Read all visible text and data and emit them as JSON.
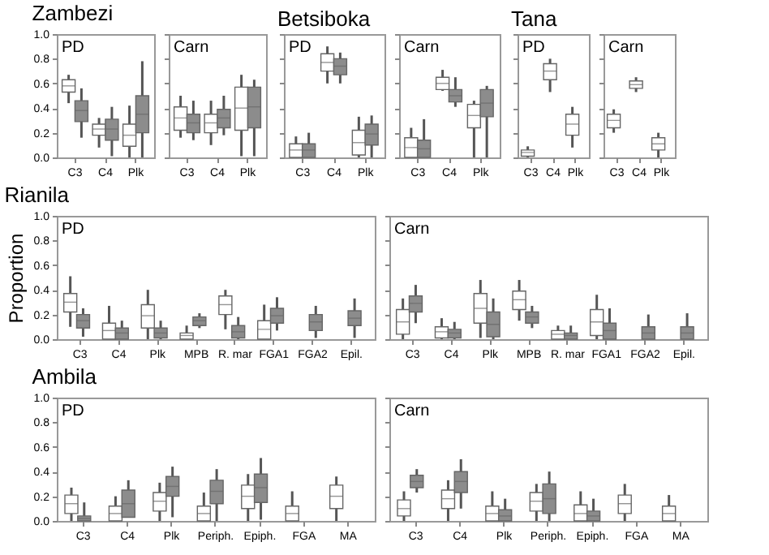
{
  "chart_data": [
    {
      "type": "box",
      "title": "Zambezi",
      "annotations": [
        "PD"
      ],
      "categories": [
        "C3",
        "C4",
        "Plk"
      ],
      "ylim": [
        0,
        1
      ],
      "yticks": [
        {
          "value": 0,
          "label": "0.0"
        },
        0.2,
        0.4,
        0.6,
        0.8,
        {
          "value": 1,
          "label": "1.0"
        }
      ],
      "grid": false,
      "series": [
        {
          "color": "#ffffff",
          "boxes": [
            {
              "low": 0.44,
              "q1": 0.53,
              "median": 0.58,
              "q3": 0.63,
              "high": 0.67
            },
            {
              "low": 0.08,
              "q1": 0.18,
              "median": 0.23,
              "q3": 0.27,
              "high": 0.32
            },
            {
              "low": 0,
              "q1": 0.09,
              "median": 0.18,
              "q3": 0.27,
              "high": 0.42
            }
          ]
        },
        {
          "color": "#8c8c8c",
          "boxes": [
            {
              "low": 0.16,
              "q1": 0.29,
              "median": 0.38,
              "q3": 0.46,
              "high": 0.56
            },
            {
              "low": 0.01,
              "q1": 0.14,
              "median": 0.23,
              "q3": 0.31,
              "high": 0.41
            },
            {
              "low": 0,
              "q1": 0.2,
              "median": 0.35,
              "q3": 0.5,
              "high": 0.78
            }
          ]
        }
      ]
    },
    {
      "type": "box",
      "annotations": [
        "Carn"
      ],
      "categories": [
        "C3",
        "C4",
        "Plk"
      ],
      "ylim": [
        0,
        1
      ],
      "yticks": [
        {
          "value": 0,
          "label": null
        },
        {
          "value": 0.2,
          "label": null
        },
        {
          "value": 0.4,
          "label": null
        },
        {
          "value": 0.6,
          "label": null
        },
        {
          "value": 0.8,
          "label": null
        },
        {
          "value": 1,
          "label": null
        }
      ],
      "tick_labels": "x",
      "grid": false,
      "series": [
        {
          "color": "#ffffff",
          "boxes": [
            {
              "low": 0.16,
              "q1": 0.22,
              "median": 0.32,
              "q3": 0.41,
              "high": 0.5
            },
            {
              "low": 0.1,
              "q1": 0.2,
              "median": 0.28,
              "q3": 0.35,
              "high": 0.46
            },
            {
              "low": 0.01,
              "q1": 0.22,
              "median": 0.4,
              "q3": 0.57,
              "high": 0.67
            }
          ]
        },
        {
          "color": "#8c8c8c",
          "boxes": [
            {
              "low": 0.14,
              "q1": 0.2,
              "median": 0.28,
              "q3": 0.35,
              "high": 0.46
            },
            {
              "low": 0.18,
              "q1": 0.24,
              "median": 0.32,
              "q3": 0.39,
              "high": 0.5
            },
            {
              "low": 0.01,
              "q1": 0.24,
              "median": 0.41,
              "q3": 0.57,
              "high": 0.63
            }
          ]
        }
      ]
    },
    {
      "type": "box",
      "title": "Betsiboka",
      "annotations": [
        "PD"
      ],
      "categories": [
        "C3",
        "C4",
        "Plk"
      ],
      "ylim": [
        0,
        1
      ],
      "yticks": [
        {
          "value": 0,
          "label": null
        },
        {
          "value": 0.2,
          "label": null
        },
        {
          "value": 0.4,
          "label": null
        },
        {
          "value": 0.6,
          "label": null
        },
        {
          "value": 0.8,
          "label": null
        },
        {
          "value": 1,
          "label": null
        }
      ],
      "tick_labels": "x",
      "grid": false,
      "series": [
        {
          "color": "#ffffff",
          "boxes": [
            {
              "low": 0,
              "q1": 0,
              "median": 0.06,
              "q3": 0.11,
              "high": 0.17
            },
            {
              "low": 0.6,
              "q1": 0.7,
              "median": 0.77,
              "q3": 0.84,
              "high": 0.9
            },
            {
              "low": 0,
              "q1": 0.02,
              "median": 0.12,
              "q3": 0.22,
              "high": 0.33
            }
          ]
        },
        {
          "color": "#8c8c8c",
          "boxes": [
            {
              "low": 0,
              "q1": 0,
              "median": 0.06,
              "q3": 0.11,
              "high": 0.2
            },
            {
              "low": 0.6,
              "q1": 0.67,
              "median": 0.74,
              "q3": 0.8,
              "high": 0.85
            },
            {
              "low": 0,
              "q1": 0.1,
              "median": 0.19,
              "q3": 0.27,
              "high": 0.34
            }
          ]
        }
      ]
    },
    {
      "type": "box",
      "annotations": [
        "Carn"
      ],
      "categories": [
        "C3",
        "C4",
        "Plk"
      ],
      "ylim": [
        0,
        1
      ],
      "yticks": [
        {
          "value": 0,
          "label": null
        },
        {
          "value": 0.2,
          "label": null
        },
        {
          "value": 0.4,
          "label": null
        },
        {
          "value": 0.6,
          "label": null
        },
        {
          "value": 0.8,
          "label": null
        },
        {
          "value": 1,
          "label": null
        }
      ],
      "tick_labels": "x",
      "grid": false,
      "series": [
        {
          "color": "#ffffff",
          "boxes": [
            {
              "low": 0,
              "q1": 0,
              "median": 0.08,
              "q3": 0.16,
              "high": 0.24
            },
            {
              "low": 0.54,
              "q1": 0.55,
              "median": 0.6,
              "q3": 0.65,
              "high": 0.71
            },
            {
              "low": 0,
              "q1": 0.24,
              "median": 0.34,
              "q3": 0.43,
              "high": 0.46
            }
          ]
        },
        {
          "color": "#8c8c8c",
          "boxes": [
            {
              "low": 0,
              "q1": 0,
              "median": 0.07,
              "q3": 0.14,
              "high": 0.31
            },
            {
              "low": 0.41,
              "q1": 0.45,
              "median": 0.5,
              "q3": 0.55,
              "high": 0.65
            },
            {
              "low": 0,
              "q1": 0.33,
              "median": 0.44,
              "q3": 0.55,
              "high": 0.58
            }
          ]
        }
      ]
    },
    {
      "type": "box",
      "title": "Tana",
      "annotations": [
        "PD"
      ],
      "categories": [
        "C3",
        "C4",
        "Plk"
      ],
      "ylim": [
        0,
        1
      ],
      "yticks": [
        {
          "value": 0,
          "label": null
        },
        {
          "value": 0.2,
          "label": null
        },
        {
          "value": 0.4,
          "label": null
        },
        {
          "value": 0.6,
          "label": null
        },
        {
          "value": 0.8,
          "label": null
        },
        {
          "value": 1,
          "label": null
        }
      ],
      "tick_labels": "x",
      "grid": false,
      "series": [
        {
          "color": "#ffffff",
          "boxes": [
            {
              "low": 0,
              "q1": 0.01,
              "median": 0.04,
              "q3": 0.06,
              "high": 0.09
            },
            {
              "low": 0.53,
              "q1": 0.63,
              "median": 0.7,
              "q3": 0.76,
              "high": 0.8
            },
            {
              "low": 0.08,
              "q1": 0.18,
              "median": 0.27,
              "q3": 0.35,
              "high": 0.41
            }
          ]
        }
      ]
    },
    {
      "type": "box",
      "annotations": [
        "Carn"
      ],
      "categories": [
        "C3",
        "C4",
        "Plk"
      ],
      "ylim": [
        0,
        1
      ],
      "yticks": [
        {
          "value": 0,
          "label": null
        },
        {
          "value": 0.2,
          "label": null
        },
        {
          "value": 0.4,
          "label": null
        },
        {
          "value": 0.6,
          "label": null
        },
        {
          "value": 0.8,
          "label": null
        },
        {
          "value": 1,
          "label": null
        }
      ],
      "tick_labels": "x",
      "grid": false,
      "series": [
        {
          "color": "#ffffff",
          "boxes": [
            {
              "low": 0.2,
              "q1": 0.24,
              "median": 0.3,
              "q3": 0.35,
              "high": 0.39
            },
            {
              "low": 0.53,
              "q1": 0.56,
              "median": 0.59,
              "q3": 0.62,
              "high": 0.65
            },
            {
              "low": 0,
              "q1": 0.06,
              "median": 0.11,
              "q3": 0.16,
              "high": 0.2
            }
          ]
        }
      ]
    },
    {
      "type": "box",
      "title": "Rianila",
      "ylabel": "Proportion",
      "annotations": [
        "PD"
      ],
      "categories": [
        "C3",
        "C4",
        "Plk",
        "MPB",
        "R. mar",
        "FGA1",
        "FGA2",
        "Epil."
      ],
      "ylim": [
        0,
        1
      ],
      "yticks": [
        {
          "value": 0,
          "label": "0.0"
        },
        0.2,
        0.4,
        0.6,
        0.8,
        {
          "value": 1,
          "label": "1.0"
        }
      ],
      "grid": false,
      "series": [
        {
          "color": "#ffffff",
          "boxes": [
            {
              "low": 0.1,
              "q1": 0.22,
              "median": 0.3,
              "q3": 0.37,
              "high": 0.51
            },
            {
              "low": 0,
              "q1": 0,
              "median": 0.07,
              "q3": 0.13,
              "high": 0.27
            },
            {
              "low": 0,
              "q1": 0.09,
              "median": 0.19,
              "q3": 0.28,
              "high": 0.4
            },
            {
              "low": 0,
              "q1": 0,
              "median": 0.03,
              "q3": 0.05,
              "high": 0.11
            },
            {
              "low": 0.08,
              "q1": 0.2,
              "median": 0.28,
              "q3": 0.35,
              "high": 0.4
            },
            {
              "low": 0,
              "q1": 0,
              "median": 0.08,
              "q3": 0.15,
              "high": 0.28
            },
            null,
            null
          ]
        },
        {
          "color": "#8c8c8c",
          "boxes": [
            {
              "low": 0.02,
              "q1": 0.09,
              "median": 0.15,
              "q3": 0.2,
              "high": 0.25
            },
            {
              "low": 0,
              "q1": 0,
              "median": 0.05,
              "q3": 0.09,
              "high": 0.15
            },
            {
              "low": 0,
              "q1": 0.01,
              "median": 0.05,
              "q3": 0.09,
              "high": 0.15
            },
            {
              "low": 0.09,
              "q1": 0.11,
              "median": 0.15,
              "q3": 0.18,
              "high": 0.21
            },
            {
              "low": 0,
              "q1": 0.01,
              "median": 0.06,
              "q3": 0.11,
              "high": 0.18
            },
            {
              "low": 0.07,
              "q1": 0.13,
              "median": 0.19,
              "q3": 0.25,
              "high": 0.34
            },
            {
              "low": 0.01,
              "q1": 0.07,
              "median": 0.14,
              "q3": 0.2,
              "high": 0.27
            },
            {
              "low": 0.01,
              "q1": 0.11,
              "median": 0.17,
              "q3": 0.23,
              "high": 0.33
            }
          ]
        }
      ]
    },
    {
      "type": "box",
      "annotations": [
        "Carn"
      ],
      "categories": [
        "C3",
        "C4",
        "Plk",
        "MPB",
        "R. mar",
        "FGA1",
        "FGA2",
        "Epil."
      ],
      "ylim": [
        0,
        1
      ],
      "yticks": [
        {
          "value": 0,
          "label": null
        },
        {
          "value": 0.2,
          "label": null
        },
        {
          "value": 0.4,
          "label": null
        },
        {
          "value": 0.6,
          "label": null
        },
        {
          "value": 0.8,
          "label": null
        },
        {
          "value": 1,
          "label": null
        }
      ],
      "tick_labels": "x",
      "grid": false,
      "series": [
        {
          "color": "#ffffff",
          "boxes": [
            {
              "low": 0,
              "q1": 0.04,
              "median": 0.14,
              "q3": 0.24,
              "high": 0.33
            },
            {
              "low": 0,
              "q1": 0.01,
              "median": 0.06,
              "q3": 0.1,
              "high": 0.17
            },
            {
              "low": 0.01,
              "q1": 0.13,
              "median": 0.25,
              "q3": 0.37,
              "high": 0.48
            },
            {
              "low": 0.15,
              "q1": 0.24,
              "median": 0.32,
              "q3": 0.39,
              "high": 0.48
            },
            {
              "low": 0,
              "q1": 0,
              "median": 0.04,
              "q3": 0.07,
              "high": 0.11
            },
            {
              "low": 0,
              "q1": 0.03,
              "median": 0.14,
              "q3": 0.24,
              "high": 0.36
            },
            null,
            null
          ]
        },
        {
          "color": "#8c8c8c",
          "boxes": [
            {
              "low": 0.13,
              "q1": 0.22,
              "median": 0.29,
              "q3": 0.35,
              "high": 0.44
            },
            {
              "low": 0,
              "q1": 0.01,
              "median": 0.05,
              "q3": 0.08,
              "high": 0.14
            },
            {
              "low": 0,
              "q1": 0.02,
              "median": 0.12,
              "q3": 0.22,
              "high": 0.33
            },
            {
              "low": 0.09,
              "q1": 0.13,
              "median": 0.18,
              "q3": 0.22,
              "high": 0.27
            },
            {
              "low": 0,
              "q1": 0,
              "median": 0.03,
              "q3": 0.05,
              "high": 0.11
            },
            {
              "low": 0,
              "q1": 0,
              "median": 0.07,
              "q3": 0.13,
              "high": 0.25
            },
            {
              "low": 0,
              "q1": 0,
              "median": 0.05,
              "q3": 0.1,
              "high": 0.2
            },
            {
              "low": 0,
              "q1": 0,
              "median": 0.05,
              "q3": 0.1,
              "high": 0.21
            }
          ]
        }
      ]
    },
    {
      "type": "box",
      "title": "Ambila",
      "annotations": [
        "PD"
      ],
      "categories": [
        "C3",
        "C4",
        "Plk",
        "Periph.",
        "Epiph.",
        "FGA",
        "MA"
      ],
      "ylim": [
        0,
        1
      ],
      "yticks": [
        {
          "value": 0,
          "label": "0.0"
        },
        0.2,
        0.4,
        0.6,
        0.8,
        {
          "value": 1,
          "label": "1.0"
        }
      ],
      "grid": false,
      "series": [
        {
          "color": "#ffffff",
          "boxes": [
            {
              "low": 0,
              "q1": 0.06,
              "median": 0.14,
              "q3": 0.21,
              "high": 0.27
            },
            {
              "low": 0,
              "q1": 0,
              "median": 0.06,
              "q3": 0.12,
              "high": 0.2
            },
            {
              "low": 0,
              "q1": 0.08,
              "median": 0.16,
              "q3": 0.23,
              "high": 0.31
            },
            {
              "low": 0,
              "q1": 0,
              "median": 0.06,
              "q3": 0.12,
              "high": 0.23
            },
            {
              "low": 0,
              "q1": 0.1,
              "median": 0.2,
              "q3": 0.29,
              "high": 0.38
            },
            {
              "low": 0,
              "q1": 0,
              "median": 0.06,
              "q3": 0.12,
              "high": 0.24
            },
            {
              "low": 0,
              "q1": 0.1,
              "median": 0.2,
              "q3": 0.29,
              "high": 0.36
            }
          ]
        },
        {
          "color": "#8c8c8c",
          "boxes": [
            {
              "low": 0,
              "q1": 0,
              "median": 0.02,
              "q3": 0.04,
              "high": 0.15
            },
            {
              "low": 0.03,
              "q1": 0.03,
              "median": 0.14,
              "q3": 0.25,
              "high": 0.33
            },
            {
              "low": 0.03,
              "q1": 0.2,
              "median": 0.28,
              "q3": 0.36,
              "high": 0.44
            },
            {
              "low": 0,
              "q1": 0.14,
              "median": 0.24,
              "q3": 0.33,
              "high": 0.42
            },
            {
              "low": 0.01,
              "q1": 0.15,
              "median": 0.27,
              "q3": 0.38,
              "high": 0.51
            },
            null,
            null
          ]
        }
      ]
    },
    {
      "type": "box",
      "annotations": [
        "Carn"
      ],
      "categories": [
        "C3",
        "C4",
        "Plk",
        "Periph.",
        "Epiph.",
        "FGA",
        "MA"
      ],
      "ylim": [
        0,
        1
      ],
      "yticks": [
        {
          "value": 0,
          "label": null
        },
        {
          "value": 0.2,
          "label": null
        },
        {
          "value": 0.4,
          "label": null
        },
        {
          "value": 0.6,
          "label": null
        },
        {
          "value": 0.8,
          "label": null
        },
        {
          "value": 1,
          "label": null
        }
      ],
      "tick_labels": "x",
      "grid": false,
      "series": [
        {
          "color": "#ffffff",
          "boxes": [
            {
              "low": 0,
              "q1": 0.04,
              "median": 0.1,
              "q3": 0.17,
              "high": 0.24
            },
            {
              "low": 0,
              "q1": 0.1,
              "median": 0.18,
              "q3": 0.25,
              "high": 0.33
            },
            {
              "low": 0,
              "q1": 0,
              "median": 0.06,
              "q3": 0.12,
              "high": 0.24
            },
            {
              "low": 0,
              "q1": 0.08,
              "median": 0.16,
              "q3": 0.23,
              "high": 0.3
            },
            {
              "low": 0,
              "q1": 0,
              "median": 0.06,
              "q3": 0.13,
              "high": 0.24
            },
            {
              "low": 0,
              "q1": 0.06,
              "median": 0.14,
              "q3": 0.21,
              "high": 0.3
            },
            {
              "low": 0,
              "q1": 0,
              "median": 0.06,
              "q3": 0.12,
              "high": 0.21
            }
          ]
        },
        {
          "color": "#8c8c8c",
          "boxes": [
            {
              "low": 0.23,
              "q1": 0.27,
              "median": 0.32,
              "q3": 0.37,
              "high": 0.42
            },
            {
              "low": 0.1,
              "q1": 0.23,
              "median": 0.32,
              "q3": 0.4,
              "high": 0.5
            },
            {
              "low": 0,
              "q1": 0,
              "median": 0.04,
              "q3": 0.09,
              "high": 0.18
            },
            {
              "low": 0,
              "q1": 0.06,
              "median": 0.18,
              "q3": 0.3,
              "high": 0.4
            },
            {
              "low": 0,
              "q1": 0,
              "median": 0.04,
              "q3": 0.08,
              "high": 0.18
            },
            null,
            null
          ]
        }
      ]
    }
  ]
}
